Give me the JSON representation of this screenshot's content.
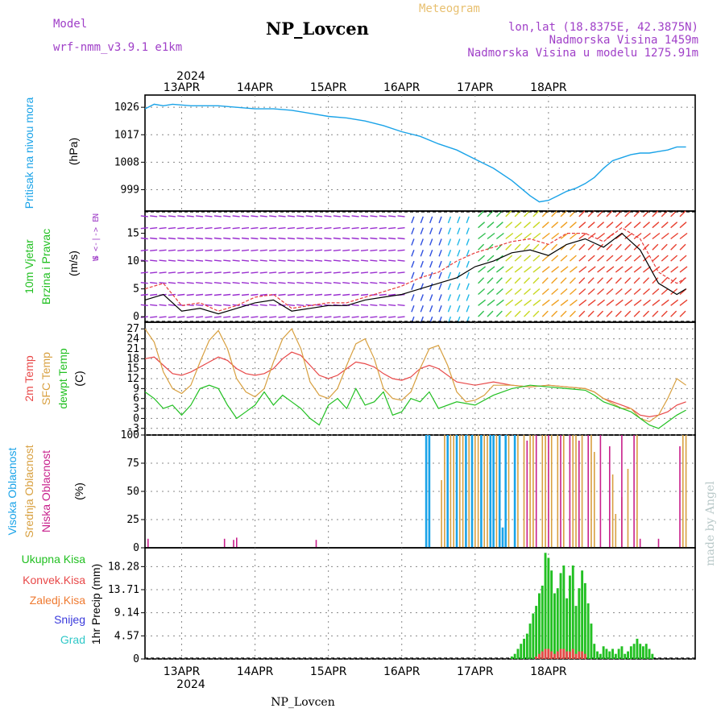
{
  "header": {
    "model_label": "Model",
    "model_name": "wrf-nmm_v3.9.1 e1km",
    "title": "NP_Lovcen",
    "subtitle": "Meteogram",
    "lonlat": "lon,lat (18.8375E, 42.3875N)",
    "elevation": "Nadmorska Visina 1459m",
    "elevation_model": "Nadmorska Visina u modelu 1275.91m",
    "year_top": "2024",
    "year_bottom": "2024",
    "footer_station": "NP_Lovcen",
    "credit": "made by Angel"
  },
  "colors": {
    "pressure": "#1aa3e8",
    "wind_speed": "#000000",
    "gust": "#e83c3c",
    "temp_2m": "#e84848",
    "temp_sfc": "#d8a040",
    "dewpoint": "#22c022",
    "cloud_high": "#1aa3e8",
    "cloud_mid": "#d8a040",
    "cloud_low": "#c8208c",
    "rain_total": "#22c022",
    "rain_conv": "#e84848",
    "freezing": "#ef7a30",
    "snow": "#3a3adc",
    "hail": "#30c8c8",
    "label_purple": "#a040c8",
    "subtitle": "#e8c070"
  },
  "x_axis": {
    "days": [
      "13APR",
      "14APR",
      "15APR",
      "16APR",
      "17APR",
      "18APR"
    ]
  },
  "chart_data": [
    {
      "type": "line",
      "panel": "pressure",
      "ylabel_lines": [
        "Pritisak na nivou mora",
        "(hPa)"
      ],
      "yticks": [
        999,
        1008,
        1017,
        1026
      ],
      "ylim": [
        992,
        1030
      ],
      "x_unit": "hours from 2024-04-12 12UTC",
      "series": [
        {
          "x": [
            0,
            3,
            6,
            9,
            15,
            24,
            30,
            36,
            42,
            48,
            54,
            60,
            66,
            72,
            78,
            84,
            90,
            96,
            102,
            108,
            114,
            120,
            123,
            126,
            129,
            132,
            135,
            138,
            141,
            144,
            147,
            150,
            153,
            156,
            159,
            162,
            165,
            168,
            171,
            174,
            177
          ],
          "values": [
            1025.5,
            1027,
            1026.5,
            1027,
            1026.5,
            1026.5,
            1026,
            1025.5,
            1025.5,
            1025,
            1024,
            1023,
            1022.5,
            1021.5,
            1020,
            1018,
            1016.5,
            1014,
            1012,
            1009,
            1006,
            1002,
            999.5,
            997,
            995,
            995.5,
            997,
            998.5,
            999.5,
            1001,
            1003,
            1006,
            1008.5,
            1009.5,
            1010.5,
            1011,
            1011,
            1011.5,
            1012,
            1013,
            1013
          ]
        }
      ]
    },
    {
      "type": "line",
      "panel": "wind",
      "ylabel_lines": [
        "10m Vjetar",
        "Brzina i Pravac",
        "(m/s)"
      ],
      "direction_key": [
        "N",
        "W  <-|->  E",
        "S"
      ],
      "yticks": [
        0,
        5,
        10,
        15
      ],
      "ylim": [
        -1,
        19
      ],
      "series": [
        {
          "name": "speed",
          "x": [
            0,
            6,
            12,
            18,
            24,
            30,
            36,
            42,
            48,
            54,
            60,
            66,
            72,
            78,
            84,
            90,
            96,
            102,
            108,
            114,
            120,
            126,
            132,
            138,
            144,
            150,
            156,
            162,
            168,
            174,
            177
          ],
          "values": [
            3,
            4,
            1,
            1.5,
            0.5,
            1.5,
            2.5,
            3,
            1,
            1.5,
            2,
            2,
            3,
            3.5,
            4,
            5,
            6,
            7,
            9,
            10,
            11.5,
            12,
            11,
            13,
            14,
            12.5,
            15,
            12,
            6,
            4,
            5
          ]
        },
        {
          "name": "gust",
          "x": [
            0,
            6,
            12,
            18,
            24,
            30,
            36,
            42,
            48,
            54,
            60,
            66,
            72,
            78,
            84,
            90,
            96,
            102,
            108,
            114,
            120,
            126,
            132,
            138,
            144,
            150,
            156,
            162,
            168,
            174,
            177
          ],
          "values": [
            5,
            6,
            2,
            2.5,
            1,
            2,
            3.5,
            4,
            1.5,
            2,
            2.5,
            2.5,
            3.5,
            4.5,
            5.5,
            7,
            8,
            10,
            11.5,
            12.5,
            13.5,
            14,
            13,
            15,
            15,
            13.5,
            16,
            14,
            8,
            6,
            7
          ]
        }
      ]
    },
    {
      "type": "line",
      "panel": "temperature",
      "ylabel_lines": [
        "2m Temp",
        "SFC Temp",
        "dewpt Temp",
        "(C)"
      ],
      "yticks": [
        -3,
        0,
        3,
        6,
        9,
        12,
        15,
        18,
        21,
        24,
        27
      ],
      "ylim": [
        -5,
        29
      ],
      "series": [
        {
          "name": "2m Temp",
          "x": [
            0,
            3,
            6,
            9,
            12,
            15,
            18,
            21,
            24,
            27,
            30,
            33,
            36,
            39,
            42,
            45,
            48,
            51,
            54,
            57,
            60,
            63,
            66,
            69,
            72,
            75,
            78,
            81,
            84,
            87,
            90,
            93,
            96,
            102,
            108,
            114,
            120,
            126,
            132,
            138,
            144,
            147,
            150,
            153,
            156,
            159,
            162,
            165,
            168,
            171,
            174,
            177
          ],
          "values": [
            18,
            18.5,
            16,
            13.5,
            13,
            14,
            15.5,
            17,
            18.5,
            17.5,
            15,
            13.5,
            13,
            13.5,
            15,
            18,
            20,
            19,
            16,
            13,
            12,
            13,
            15,
            17,
            16.5,
            15.5,
            13.5,
            12,
            11.5,
            12.5,
            15,
            16,
            15,
            11,
            10,
            11,
            10,
            9.5,
            10,
            9.5,
            9,
            8,
            6,
            5,
            4,
            3,
            1,
            0.5,
            1,
            2,
            4,
            5
          ]
        },
        {
          "name": "SFC Temp",
          "x": [
            0,
            3,
            6,
            9,
            12,
            15,
            18,
            21,
            24,
            27,
            30,
            33,
            36,
            39,
            42,
            45,
            48,
            51,
            54,
            57,
            60,
            63,
            66,
            69,
            72,
            75,
            78,
            81,
            84,
            87,
            90,
            93,
            96,
            99,
            102,
            105,
            108,
            111,
            114,
            120,
            126,
            132,
            138,
            144,
            147,
            150,
            153,
            156,
            159,
            162,
            165,
            168,
            171,
            174,
            177
          ],
          "values": [
            27,
            23,
            14,
            9,
            7.5,
            10,
            17,
            23.5,
            26.5,
            21,
            12,
            8,
            6.5,
            9,
            17,
            24,
            27,
            21,
            11,
            7,
            6,
            9,
            16,
            22.5,
            24,
            18,
            9,
            6,
            5.5,
            8,
            15,
            21,
            22,
            16,
            8,
            5,
            5.5,
            7,
            10,
            10,
            9.5,
            10,
            9.5,
            9,
            8,
            6,
            4.5,
            3,
            3,
            0,
            -1,
            1,
            6,
            12,
            10
          ]
        },
        {
          "name": "dewpt Temp",
          "x": [
            0,
            3,
            6,
            9,
            12,
            15,
            18,
            21,
            24,
            27,
            30,
            33,
            36,
            39,
            42,
            45,
            48,
            51,
            54,
            57,
            60,
            63,
            66,
            69,
            72,
            75,
            78,
            81,
            84,
            87,
            90,
            93,
            96,
            102,
            108,
            114,
            120,
            126,
            132,
            138,
            144,
            147,
            150,
            153,
            156,
            159,
            162,
            165,
            168,
            171,
            174,
            177
          ],
          "values": [
            8,
            6,
            3,
            4,
            1,
            4,
            9,
            10,
            9,
            4,
            0,
            2,
            4,
            8,
            4,
            7,
            5,
            3,
            0,
            -2,
            4,
            6,
            3,
            9,
            4,
            5,
            8,
            1,
            2,
            6,
            5,
            8,
            3,
            5,
            4,
            7,
            9,
            10,
            9.5,
            9,
            8.5,
            7,
            5,
            4,
            3,
            2,
            0,
            -2,
            -3,
            -1,
            1,
            2.5
          ]
        }
      ]
    },
    {
      "type": "bar",
      "panel": "clouds",
      "ylabel_lines": [
        "Visoka Oblacnost",
        "Srednja Oblacnost",
        "Niska Oblacnost",
        "(%)"
      ],
      "yticks": [
        0,
        25,
        50,
        75,
        100
      ],
      "ylim": [
        0,
        100
      ],
      "series": [
        {
          "name": "Visoka Oblacnost",
          "x": [
            92,
            93,
            99,
            102,
            105,
            107,
            110,
            113,
            114,
            116,
            117,
            118,
            121
          ],
          "values": [
            100,
            100,
            100,
            100,
            100,
            100,
            100,
            100,
            100,
            100,
            18,
            100,
            100
          ]
        },
        {
          "name": "Srednja Oblacnost",
          "x": [
            97,
            98,
            100,
            101,
            103,
            104,
            106,
            108,
            109,
            111,
            112,
            115,
            119,
            122,
            124,
            126,
            127,
            130,
            131,
            133,
            135,
            137,
            140,
            141,
            143,
            146,
            147,
            153,
            154,
            156,
            158,
            161,
            176,
            177
          ],
          "values": [
            60,
            100,
            100,
            100,
            100,
            100,
            100,
            100,
            100,
            100,
            100,
            100,
            100,
            100,
            100,
            100,
            100,
            100,
            100,
            100,
            100,
            100,
            100,
            100,
            100,
            100,
            85,
            65,
            30,
            45,
            70,
            100,
            100,
            100
          ]
        },
        {
          "name": "Niska Oblacnost",
          "x": [
            1,
            26,
            29,
            30,
            56,
            125,
            128,
            132,
            136,
            139,
            142,
            145,
            149,
            152,
            156,
            160,
            162,
            168,
            175
          ],
          "values": [
            8,
            8,
            7,
            9,
            7,
            95,
            100,
            100,
            100,
            100,
            95,
            100,
            100,
            90,
            100,
            100,
            8,
            8,
            90
          ]
        }
      ]
    },
    {
      "type": "bar",
      "panel": "precipitation",
      "ylabel_lines": [
        "1hr Precip (mm)"
      ],
      "legend": [
        "Ukupna Kisa",
        "Konvek.Kisa",
        "Zaledj.Kisa",
        "Snijeg",
        "Grad"
      ],
      "yticks": [
        0,
        4.57,
        9.14,
        13.71,
        18.28
      ],
      "ylim": [
        0,
        22
      ],
      "series": [
        {
          "name": "Ukupna Kisa",
          "x": [
            120,
            121,
            122,
            123,
            124,
            125,
            126,
            127,
            128,
            129,
            130,
            131,
            132,
            133,
            134,
            135,
            136,
            137,
            138,
            139,
            140,
            141,
            142,
            143,
            144,
            145,
            146,
            147,
            148,
            149,
            150,
            151,
            152,
            153,
            154,
            155,
            156,
            157,
            158,
            159,
            160,
            161,
            162,
            163,
            164,
            165,
            166
          ],
          "values": [
            0.5,
            1,
            2,
            3,
            4,
            5,
            7,
            9,
            10.5,
            13,
            14.5,
            21,
            20,
            17.5,
            13,
            14,
            17,
            18.5,
            12,
            16.5,
            18.5,
            10.5,
            14,
            17.5,
            15,
            11,
            7,
            3,
            1.5,
            1,
            2.5,
            2,
            1.5,
            2,
            1,
            2,
            2.5,
            1,
            1.5,
            2.5,
            3,
            4,
            3,
            2.5,
            3,
            2,
            1
          ]
        },
        {
          "name": "Konvek.Kisa",
          "x": [
            128,
            129,
            130,
            131,
            132,
            133,
            134,
            135,
            136,
            137,
            138,
            139,
            140,
            141,
            142,
            143,
            144
          ],
          "values": [
            0.5,
            1,
            1.5,
            2,
            2,
            1.5,
            1,
            1.5,
            2,
            2,
            1.5,
            1.5,
            2,
            1,
            1.5,
            1.5,
            1
          ]
        }
      ]
    }
  ]
}
